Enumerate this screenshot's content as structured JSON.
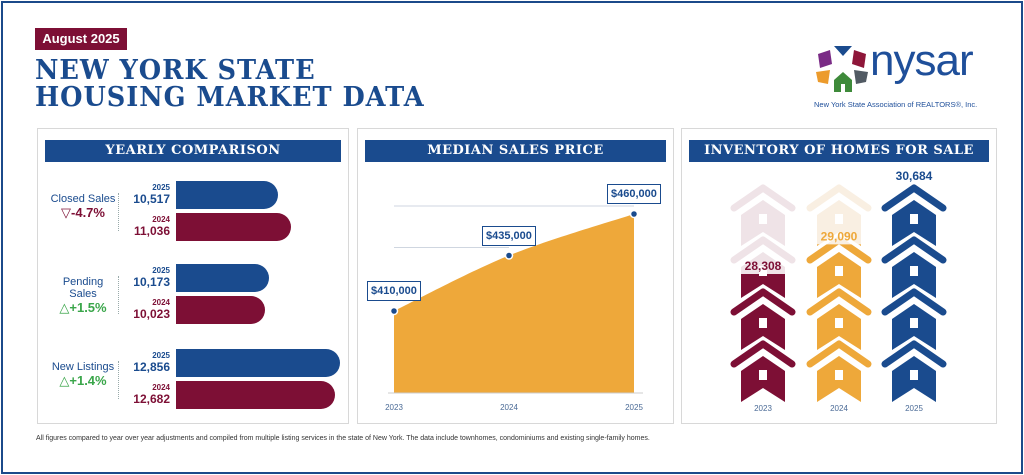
{
  "header": {
    "badge": "August 2025",
    "title_line1": "NEW YORK STATE",
    "title_line2": "HOUSING MARKET DATA"
  },
  "logo": {
    "wordmark": "nysar",
    "subtitle": "New York State Association of REALTORS®, Inc."
  },
  "colors": {
    "blue": "#1a4b8e",
    "maroon": "#7d0f35",
    "orange": "#eea83a",
    "green": "#3aa64a"
  },
  "chart_data": [
    {
      "type": "bar",
      "title": "YEARLY COMPARISON",
      "categories": [
        "Closed Sales",
        "Pending Sales",
        "New Listings"
      ],
      "changes": [
        {
          "text": "-4.7%",
          "direction": "down",
          "icon": "triangle-down-icon"
        },
        {
          "text": "+1.5%",
          "direction": "up",
          "icon": "triangle-up-icon"
        },
        {
          "text": "+1.4%",
          "direction": "up",
          "icon": "triangle-up-icon"
        }
      ],
      "series": [
        {
          "name": "2025",
          "values": [
            10517,
            10173,
            12856
          ],
          "labels": [
            "10,517",
            "10,173",
            "12,856"
          ],
          "color": "#1a4b8e"
        },
        {
          "name": "2024",
          "values": [
            11036,
            10023,
            12682
          ],
          "labels": [
            "11,036",
            "10,023",
            "12,682"
          ],
          "color": "#7d0f35"
        }
      ]
    },
    {
      "type": "area",
      "title": "MEDIAN SALES PRICE",
      "x": [
        "2023",
        "2024",
        "2025"
      ],
      "values": [
        410000,
        435000,
        460000
      ],
      "labels": [
        "$410,000",
        "$435,000",
        "$460,000"
      ],
      "color": "#eea83a"
    },
    {
      "type": "bar",
      "title": "INVENTORY OF HOMES FOR SALE",
      "categories": [
        "2023",
        "2024",
        "2025"
      ],
      "values": [
        28308,
        29090,
        30684
      ],
      "labels": [
        "28,308",
        "29,090",
        "30,684"
      ],
      "colors": [
        "#7d0f35",
        "#eea83a",
        "#1a4b8e"
      ],
      "faded_colors": [
        "#efe3e7",
        "#f9efe2",
        "#dfe6f0"
      ],
      "icon": "house-icon"
    }
  ],
  "footer": "All figures compared to year over year adjustments and compiled from multiple listing services in the state of New York.  The data include townhomes, condominiums and existing single-family homes."
}
